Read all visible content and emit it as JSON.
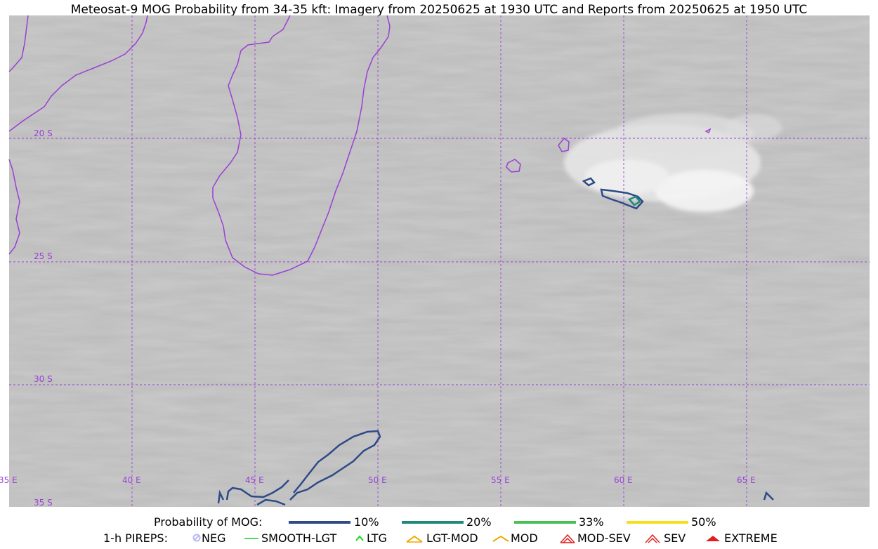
{
  "title": "Meteosat-9 MOG Probability from 34-35 kft: Imagery from 20250625 at 1930 UTC and Reports from 20250625 at 1950 UTC",
  "map": {
    "lon_labels": [
      "35 E",
      "40 E",
      "45 E",
      "50 E",
      "55 E",
      "60 E",
      "65 E"
    ],
    "lat_labels": [
      "20 S",
      "25 S",
      "30 S",
      "35 S"
    ],
    "colors": {
      "graticule": "#9b3fd6",
      "coastline": "#9b3fd6",
      "prob10": "#2e4a87",
      "prob20": "#1f8a7a",
      "prob33": "#48c058",
      "prob50": "#f5e11a"
    }
  },
  "legend": {
    "probability_label": "Probability of MOG:",
    "probability_items": [
      {
        "label": "10%",
        "color": "#2e4a87"
      },
      {
        "label": "20%",
        "color": "#1f8a7a"
      },
      {
        "label": "33%",
        "color": "#48c058"
      },
      {
        "label": "50%",
        "color": "#f5e11a"
      }
    ],
    "pireps_label": "1-h PIREPS:",
    "pirep_items": [
      {
        "label": "NEG",
        "icon": "neg-circle-icon",
        "color": "#b9b9f5"
      },
      {
        "label": "SMOOTH-LGT",
        "icon": "smooth-line-icon",
        "color": "#22cc22"
      },
      {
        "label": "LTG",
        "icon": "ltg-caret-icon",
        "color": "#11dd11"
      },
      {
        "label": "LGT-MOD",
        "icon": "lgt-mod-caret-icon",
        "color": "#f0a800"
      },
      {
        "label": "MOD",
        "icon": "mod-caret-icon",
        "color": "#f0a800"
      },
      {
        "label": "MOD-SEV",
        "icon": "mod-sev-caret-icon",
        "color": "#e02020"
      },
      {
        "label": "SEV",
        "icon": "sev-caret-icon",
        "color": "#e02020"
      },
      {
        "label": "EXTREME",
        "icon": "extreme-caret-icon",
        "color": "#e02020"
      }
    ]
  }
}
